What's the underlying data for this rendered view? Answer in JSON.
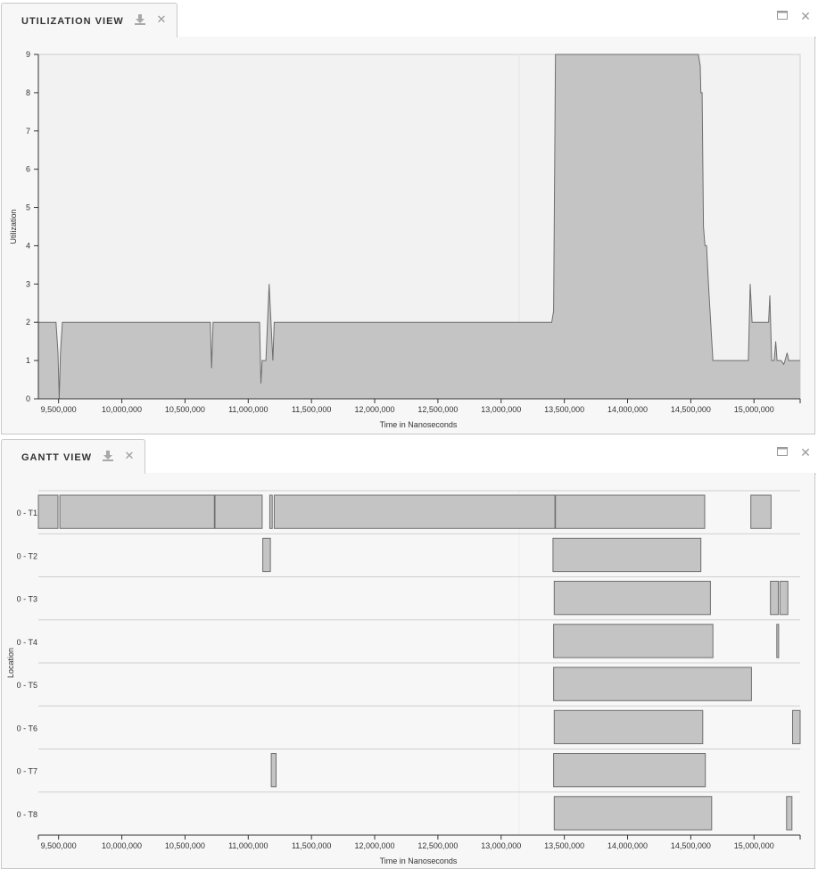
{
  "utilization_view": {
    "tab_title": "UTILIZATION VIEW",
    "download_icon": "download-icon",
    "close_icon": "close-icon",
    "maximize_icon": "maximize-icon",
    "window_close_icon": "close-icon"
  },
  "gantt_view": {
    "tab_title": "GANTT VIEW",
    "download_icon": "download-icon",
    "close_icon": "close-icon",
    "maximize_icon": "maximize-icon",
    "window_close_icon": "close-icon"
  },
  "colors": {
    "fill": "#c4c4c4",
    "stroke": "#6e6e6e",
    "plot_bg": "#f2f2f2",
    "panel_bg": "#f7f7f7"
  },
  "chart_data": [
    {
      "type": "area",
      "title": "",
      "xlabel": "Time in Nanoseconds",
      "ylabel": "Utilization",
      "xlim": [
        9340000,
        15365000
      ],
      "ylim": [
        0,
        9
      ],
      "x_ticks": [
        9500000,
        10000000,
        10500000,
        11000000,
        11500000,
        12000000,
        12500000,
        13000000,
        13500000,
        14000000,
        14500000,
        15000000
      ],
      "x_tick_labels": [
        "9,500,000",
        "10,000,000",
        "10,500,000",
        "11,000,000",
        "11,500,000",
        "12,000,000",
        "12,500,000",
        "13,000,000",
        "13,500,000",
        "14,000,000",
        "14,500,000",
        "15,000,000"
      ],
      "y_ticks": [
        0,
        1,
        2,
        3,
        4,
        5,
        6,
        7,
        8,
        9
      ],
      "y_tick_labels": [
        "0",
        "1",
        "2",
        "3",
        "4",
        "5",
        "6",
        "7",
        "8",
        "9"
      ],
      "grid": false,
      "series": [
        {
          "x": [
            9340000,
            9480000,
            9495000,
            9505000,
            9515000,
            9530000,
            10700000,
            10710000,
            10722000,
            10740000,
            11090000,
            11100000,
            11110000,
            11140000,
            11165000,
            11180000,
            11195000,
            11205000,
            11215000,
            11225000,
            11235000,
            13400000,
            13415000,
            13430000,
            14560000,
            14575000,
            14580000,
            14590000,
            14600000,
            14612000,
            14625000,
            14640000,
            14675000,
            14955000,
            14970000,
            14985000,
            15115000,
            15125000,
            15140000,
            15160000,
            15172000,
            15182000,
            15195000,
            15215000,
            15235000,
            15245000,
            15262000,
            15275000,
            15290000,
            15365000
          ],
          "y": [
            2,
            2,
            1.2,
            0,
            1.2,
            2,
            2,
            0.8,
            2,
            2,
            2,
            0.4,
            1,
            1,
            3,
            2,
            1,
            2,
            2,
            2,
            2,
            2,
            2.3,
            9,
            9,
            8.7,
            8,
            8,
            4.5,
            4,
            4,
            3,
            1,
            1,
            3,
            2,
            2,
            2.7,
            1,
            1,
            1.5,
            1,
            1,
            1,
            0.9,
            1,
            1.2,
            1,
            1,
            1
          ]
        }
      ]
    },
    {
      "type": "gantt",
      "title": "",
      "xlabel": "Time in Nanoseconds",
      "ylabel": "Location",
      "xlim": [
        9340000,
        15365000
      ],
      "x_ticks": [
        9500000,
        10000000,
        10500000,
        11000000,
        11500000,
        12000000,
        12500000,
        13000000,
        13500000,
        14000000,
        14500000,
        15000000
      ],
      "x_tick_labels": [
        "9,500,000",
        "10,000,000",
        "10,500,000",
        "11,000,000",
        "11,500,000",
        "12,000,000",
        "12,500,000",
        "13,000,000",
        "13,500,000",
        "14,000,000",
        "14,500,000",
        "15,000,000"
      ],
      "rows": [
        {
          "label": "0 - T1",
          "intervals": [
            [
              9340000,
              9495000
            ],
            [
              9510000,
              10732000
            ],
            [
              10737000,
              11110000
            ],
            [
              11170000,
              11190000
            ],
            [
              11205000,
              13425000
            ],
            [
              13430000,
              14610000
            ],
            [
              14975000,
              15135000
            ]
          ]
        },
        {
          "label": "0 - T2",
          "intervals": [
            [
              11115000,
              11175000
            ],
            [
              13410000,
              14580000
            ]
          ]
        },
        {
          "label": "0 - T3",
          "intervals": [
            [
              13420000,
              14655000
            ],
            [
              15130000,
              15192000
            ],
            [
              15205000,
              15268000
            ]
          ]
        },
        {
          "label": "0 - T4",
          "intervals": [
            [
              13415000,
              14675000
            ],
            [
              15180000,
              15195000
            ]
          ]
        },
        {
          "label": "0 - T5",
          "intervals": [
            [
              13415000,
              14980000
            ]
          ]
        },
        {
          "label": "0 - T6",
          "intervals": [
            [
              13420000,
              14595000
            ],
            [
              15305000,
              15365000
            ]
          ]
        },
        {
          "label": "0 - T7",
          "intervals": [
            [
              11182000,
              11220000
            ],
            [
              13415000,
              14615000
            ]
          ]
        },
        {
          "label": "0 - T8",
          "intervals": [
            [
              13420000,
              14665000
            ],
            [
              15258000,
              15300000
            ]
          ]
        }
      ]
    }
  ]
}
